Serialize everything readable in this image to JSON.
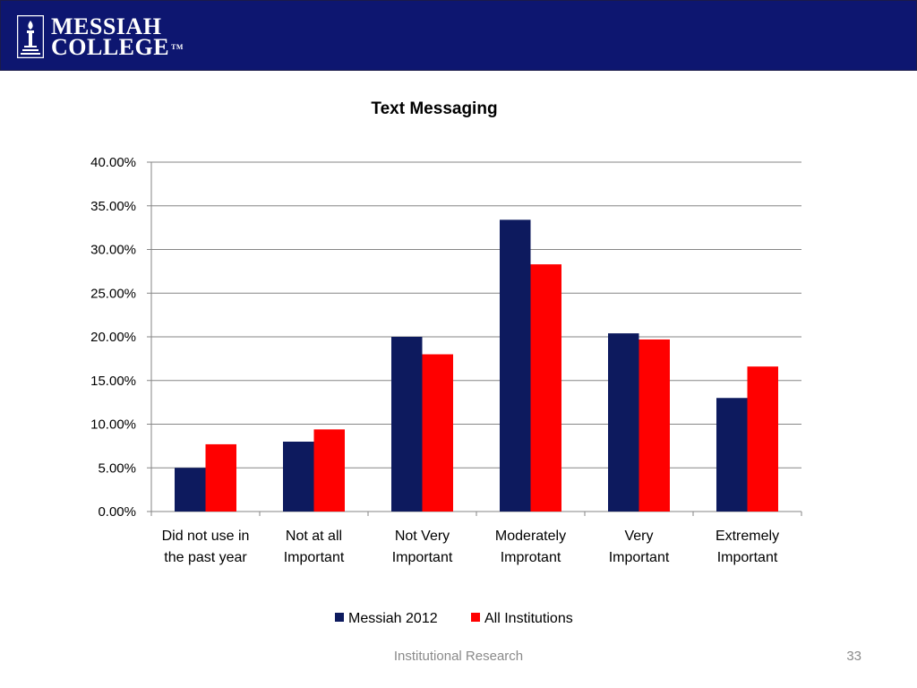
{
  "header": {
    "brand_line1": "MESSIAH",
    "brand_line2": "COLLEGE",
    "trademark": "TM",
    "background_color": "#0d1670"
  },
  "chart_data": {
    "type": "bar",
    "title": "Text Messaging",
    "categories": [
      [
        "Did not use in",
        "the past year"
      ],
      [
        "Not at all",
        "Important"
      ],
      [
        "Not Very",
        "Important"
      ],
      [
        "Moderately",
        "Improtant"
      ],
      [
        "Very",
        "Important"
      ],
      [
        "Extremely",
        "Important"
      ]
    ],
    "series": [
      {
        "name": "Messiah 2012",
        "color": "#0d1a5e",
        "values": [
          5.0,
          8.0,
          20.0,
          33.4,
          20.4,
          13.0
        ]
      },
      {
        "name": "All Institutions",
        "color": "#ff0000",
        "values": [
          7.7,
          9.4,
          18.0,
          28.3,
          19.7,
          16.6
        ]
      }
    ],
    "ylim": [
      0,
      40
    ],
    "yticks": [
      "0.00%",
      "5.00%",
      "10.00%",
      "15.00%",
      "20.00%",
      "25.00%",
      "30.00%",
      "35.00%",
      "40.00%"
    ],
    "grid": true,
    "legend_position": "bottom"
  },
  "footer": {
    "text": "Institutional Research",
    "page_number": "33"
  }
}
